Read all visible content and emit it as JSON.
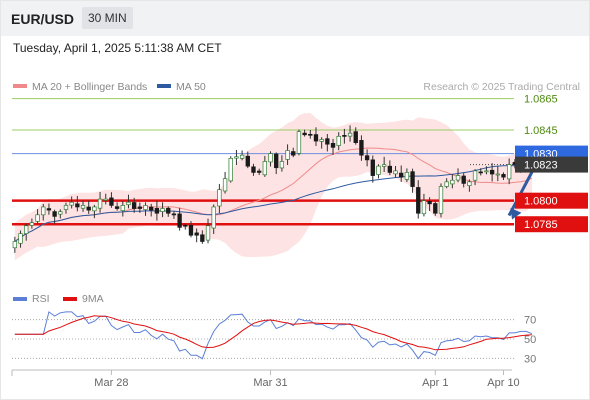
{
  "header": {
    "symbol": "EUR/USD",
    "timeframe": "30 MIN",
    "datetime": "Tuesday, April 1, 2025 5:11:38 AM CET"
  },
  "chart_data": [
    {
      "type": "candlestick",
      "title": "EUR/USD 30 MIN",
      "credit": "Research © 2025 Trading Central",
      "legend": [
        {
          "name": "MA 20 + Bollinger Bands",
          "color": "#f08a8a"
        },
        {
          "name": "MA 50",
          "color": "#2d5aa0"
        }
      ],
      "ylim": [
        1.0752,
        1.0882
      ],
      "x_ticks": [
        {
          "label": "Mar 28",
          "index": 17
        },
        {
          "label": "Mar 31",
          "index": 45
        },
        {
          "label": "Apr 1",
          "index": 74
        },
        {
          "label": "Apr 10",
          "index": 86
        }
      ],
      "levels": [
        {
          "value": 1.0865,
          "label": "1.0865",
          "color": "#9ccc65",
          "style": "line"
        },
        {
          "value": 1.0845,
          "label": "1.0845",
          "color": "#9ccc65",
          "style": "line"
        },
        {
          "value": 1.083,
          "label": "1.0830",
          "color": "#6d8fe0",
          "style": "line",
          "tag_color": "#2f69e0"
        },
        {
          "value": 1.0823,
          "label": "1.0823",
          "color": "#444444",
          "style": "dotted",
          "tag_color": "#3a3a3a"
        },
        {
          "value": 1.08,
          "label": "1.0800",
          "color": "#e01010",
          "style": "thick",
          "tag_color": "#e01010"
        },
        {
          "value": 1.0785,
          "label": "1.0785",
          "color": "#e01010",
          "style": "thick",
          "tag_color": "#e01010"
        }
      ],
      "close": [
        1.0774,
        1.0779,
        1.0784,
        1.0786,
        1.0791,
        1.0796,
        1.0794,
        1.079,
        1.0793,
        1.0797,
        1.0799,
        1.0796,
        1.0797,
        1.0794,
        1.0796,
        1.0801,
        1.0801,
        1.0797,
        1.0795,
        1.0797,
        1.0799,
        1.0795,
        1.0795,
        1.0797,
        1.0794,
        1.0792,
        1.0795,
        1.0792,
        1.0791,
        1.0783,
        1.0784,
        1.0778,
        1.0778,
        1.0774,
        1.0784,
        1.0796,
        1.0807,
        1.0814,
        1.0827,
        1.0828,
        1.0829,
        1.0822,
        1.0818,
        1.0818,
        1.0825,
        1.083,
        1.0821,
        1.0825,
        1.0832,
        1.0829,
        1.0844,
        1.0842,
        1.0842,
        1.0838,
        1.0839,
        1.0836,
        1.0834,
        1.0841,
        1.0841,
        1.0843,
        1.0837,
        1.0829,
        1.0826,
        1.0816,
        1.0822,
        1.0823,
        1.0818,
        1.0819,
        1.0815,
        1.0818,
        1.0809,
        1.0792,
        1.08,
        1.0798,
        1.0792,
        1.0809,
        1.0812,
        1.0813,
        1.0816,
        1.0811,
        1.0812,
        1.0819,
        1.0818,
        1.0819,
        1.0817,
        1.0817,
        1.0815,
        1.0823,
        1.0823,
        1.0825,
        1.0825,
        1.0823
      ],
      "ma20_last": 1.0818,
      "ma50_last": 1.0821,
      "forecast": {
        "from": 1.0823,
        "to": 1.0788,
        "color": "#2d5aa0"
      }
    },
    {
      "type": "line",
      "legend": [
        {
          "name": "RSI",
          "color": "#5b7fd6"
        },
        {
          "name": "9MA",
          "color": "#e01010"
        }
      ],
      "ylim": [
        20,
        80
      ],
      "levels": [
        {
          "value": 70,
          "label": "70"
        },
        {
          "value": 50,
          "label": "50"
        },
        {
          "value": 30,
          "label": "30"
        }
      ],
      "rsi_last": 55,
      "ma9_last": 54
    }
  ]
}
